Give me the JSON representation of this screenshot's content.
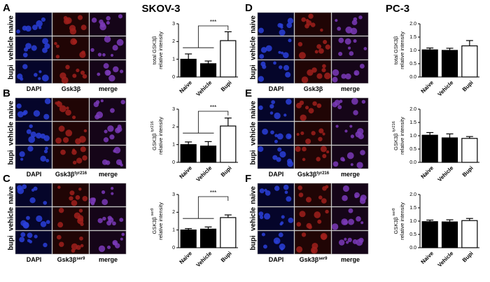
{
  "titles": [
    "SKOV-3",
    "PC-3"
  ],
  "panels": [
    {
      "letter": "A",
      "rows": [
        "naive",
        "vehicle",
        "bupi"
      ],
      "columns": [
        "DAPI",
        "Gsk3β",
        "merge"
      ]
    },
    {
      "letter": "B",
      "rows": [
        "naive",
        "vehicle",
        "bupi"
      ],
      "columns": [
        "DAPI",
        "Gsk3β",
        "merge"
      ],
      "marker_sup": "tyr216"
    },
    {
      "letter": "C",
      "rows": [
        "naive",
        "vehicle",
        "bupi"
      ],
      "columns": [
        "DAPI",
        "Gsk3β",
        "merge"
      ],
      "marker_sup": "ser9"
    },
    {
      "letter": "D",
      "rows": [
        "naive",
        "vehicle",
        "bupi"
      ],
      "columns": [
        "DAPI",
        "Gsk3β",
        "merge"
      ]
    },
    {
      "letter": "E",
      "rows": [
        "naive",
        "vehicle",
        "bupi"
      ],
      "columns": [
        "DAPI",
        "Gsk3β",
        "merge"
      ],
      "marker_sup": "tyr216"
    },
    {
      "letter": "F",
      "rows": [
        "naive",
        "vehicle",
        "bupi"
      ],
      "columns": [
        "DAPI",
        "Gsk3β",
        "merge"
      ],
      "marker_sup": "ser9"
    }
  ],
  "chart_data": [
    {
      "type": "bar",
      "ylabel": [
        "total GSK3β",
        "relative intensity"
      ],
      "categories": [
        "Naive",
        "Vehicle",
        "Bupi"
      ],
      "values": [
        1.0,
        0.75,
        2.05
      ],
      "errors": [
        0.3,
        0.15,
        0.5
      ],
      "colors": [
        "#000000",
        "#000000",
        "#ffffff"
      ],
      "ylim": [
        0,
        3
      ],
      "yticks": [
        0,
        1,
        2,
        3
      ],
      "annotation": "***"
    },
    {
      "type": "bar",
      "ylabel": [
        "GSK3β",
        "relative intensity"
      ],
      "ylabel_sup": "tyr216",
      "categories": [
        "Naive",
        "Vehicle",
        "Bupi"
      ],
      "values": [
        1.0,
        0.92,
        2.05
      ],
      "errors": [
        0.15,
        0.25,
        0.45
      ],
      "colors": [
        "#000000",
        "#000000",
        "#ffffff"
      ],
      "ylim": [
        0,
        3
      ],
      "yticks": [
        0,
        1,
        2,
        3
      ],
      "annotation": "***"
    },
    {
      "type": "bar",
      "ylabel": [
        "GSK3β",
        "relative intensity"
      ],
      "ylabel_sup": "ser9",
      "categories": [
        "Naive",
        "Vehicle",
        "Bupi"
      ],
      "values": [
        1.0,
        1.05,
        1.7
      ],
      "errors": [
        0.08,
        0.12,
        0.15
      ],
      "colors": [
        "#000000",
        "#000000",
        "#ffffff"
      ],
      "ylim": [
        0,
        3
      ],
      "yticks": [
        0,
        1,
        2,
        3
      ],
      "annotation": "***"
    },
    {
      "type": "bar",
      "ylabel": [
        "total GSK3β",
        "relative intensity"
      ],
      "categories": [
        "Naive",
        "Vehicle",
        "Bupi"
      ],
      "values": [
        1.02,
        1.0,
        1.17
      ],
      "errors": [
        0.07,
        0.08,
        0.2
      ],
      "colors": [
        "#000000",
        "#000000",
        "#ffffff"
      ],
      "ylim": [
        0,
        2
      ],
      "yticks": [
        {
          "value": 0,
          "label": "0.0"
        },
        {
          "value": 0.5,
          "label": "0.5"
        },
        {
          "value": 1,
          "label": "1.0"
        },
        {
          "value": 1.5,
          "label": "1.5"
        },
        {
          "value": 2,
          "label": "2.0"
        }
      ]
    },
    {
      "type": "bar",
      "ylabel": [
        "GSK3β",
        "relative intensity"
      ],
      "ylabel_sup": "tyr216",
      "categories": [
        "Naive",
        "Vehicle",
        "Bupi"
      ],
      "values": [
        1.02,
        0.92,
        0.9
      ],
      "errors": [
        0.1,
        0.15,
        0.07
      ],
      "colors": [
        "#000000",
        "#000000",
        "#ffffff"
      ],
      "ylim": [
        0,
        2
      ],
      "yticks": [
        {
          "value": 0,
          "label": "0.0"
        },
        {
          "value": 0.5,
          "label": "0.5"
        },
        {
          "value": 1,
          "label": "1.0"
        },
        {
          "value": 1.5,
          "label": "1.5"
        },
        {
          "value": 2,
          "label": "2.0"
        }
      ]
    },
    {
      "type": "bar",
      "ylabel": [
        "GSK3β",
        "relative intensity"
      ],
      "ylabel_sup": "ser9",
      "categories": [
        "Naive",
        "Vehicle",
        "Bupi"
      ],
      "values": [
        0.98,
        0.97,
        1.02
      ],
      "errors": [
        0.06,
        0.08,
        0.08
      ],
      "colors": [
        "#000000",
        "#000000",
        "#ffffff"
      ],
      "ylim": [
        0,
        2
      ],
      "yticks": [
        {
          "value": 0,
          "label": "0.0"
        },
        {
          "value": 0.5,
          "label": "0.5"
        },
        {
          "value": 1,
          "label": "1.0"
        },
        {
          "value": 1.5,
          "label": "1.5"
        },
        {
          "value": 2,
          "label": "2.0"
        }
      ]
    }
  ]
}
